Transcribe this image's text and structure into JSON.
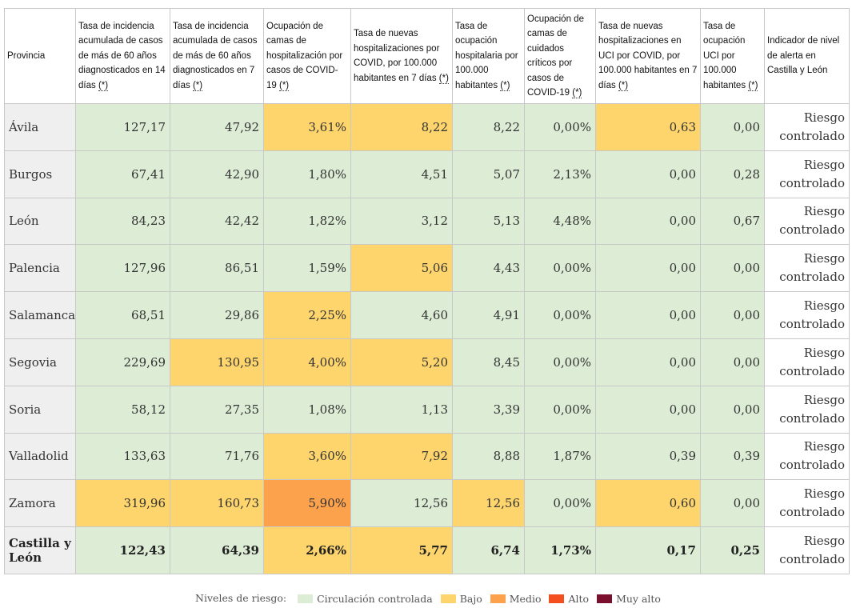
{
  "headers": [
    {
      "text": "Provincia",
      "ast": ""
    },
    {
      "text": "Tasa de incidencia acumulada de casos de más de 60 años diagnosticados en 14 días ",
      "ast": "(*)"
    },
    {
      "text": "Tasa de incidencia acumulada de casos de más de 60 años diagnosticados en 7 días ",
      "ast": "(*)"
    },
    {
      "text": "Ocupación de camas de hospitalización por casos de COVID-19 ",
      "ast": "(*)"
    },
    {
      "text": "Tasa de nuevas hospitalizaciones por COVID, por 100.000 habitantes en 7 días ",
      "ast": "(*)"
    },
    {
      "text": "Tasa de ocupación hospitalaria por 100.000 habitantes ",
      "ast": "(*)"
    },
    {
      "text": "Ocupación de camas de cuidados críticos por casos de COVID-19 ",
      "ast": "(*)"
    },
    {
      "text": "Tasa de nuevas hospitalizaciones en UCI por COVID, por 100.000 habitantes en 7 días ",
      "ast": "(*)"
    },
    {
      "text": "Tasa de ocupación UCI por 100.000 habitantes ",
      "ast": "(*)"
    },
    {
      "text": "Indicador de nivel de alerta en Castilla y León",
      "ast": ""
    }
  ],
  "rows": [
    {
      "province": "Ávila",
      "values": [
        "127,17",
        "47,92",
        "3,61%",
        "8,22",
        "8,22",
        "0,00%",
        "0,63",
        "0,00"
      ],
      "levels": [
        "green",
        "green",
        "yellow",
        "yellow",
        "green",
        "green",
        "yellow",
        "green"
      ],
      "alert": "Riesgo controlado"
    },
    {
      "province": "Burgos",
      "values": [
        "67,41",
        "42,90",
        "1,80%",
        "4,51",
        "5,07",
        "2,13%",
        "0,00",
        "0,28"
      ],
      "levels": [
        "green",
        "green",
        "green",
        "green",
        "green",
        "green",
        "green",
        "green"
      ],
      "alert": "Riesgo controlado"
    },
    {
      "province": "León",
      "values": [
        "84,23",
        "42,42",
        "1,82%",
        "3,12",
        "5,13",
        "4,48%",
        "0,00",
        "0,67"
      ],
      "levels": [
        "green",
        "green",
        "green",
        "green",
        "green",
        "green",
        "green",
        "green"
      ],
      "alert": "Riesgo controlado"
    },
    {
      "province": "Palencia",
      "values": [
        "127,96",
        "86,51",
        "1,59%",
        "5,06",
        "4,43",
        "0,00%",
        "0,00",
        "0,00"
      ],
      "levels": [
        "green",
        "green",
        "green",
        "yellow",
        "green",
        "green",
        "green",
        "green"
      ],
      "alert": "Riesgo controlado"
    },
    {
      "province": "Salamanca",
      "values": [
        "68,51",
        "29,86",
        "2,25%",
        "4,60",
        "4,91",
        "0,00%",
        "0,00",
        "0,00"
      ],
      "levels": [
        "green",
        "green",
        "yellow",
        "green",
        "green",
        "green",
        "green",
        "green"
      ],
      "alert": "Riesgo controlado"
    },
    {
      "province": "Segovia",
      "values": [
        "229,69",
        "130,95",
        "4,00%",
        "5,20",
        "8,45",
        "0,00%",
        "0,00",
        "0,00"
      ],
      "levels": [
        "green",
        "yellow",
        "yellow",
        "yellow",
        "green",
        "green",
        "green",
        "green"
      ],
      "alert": "Riesgo controlado"
    },
    {
      "province": "Soria",
      "values": [
        "58,12",
        "27,35",
        "1,08%",
        "1,13",
        "3,39",
        "0,00%",
        "0,00",
        "0,00"
      ],
      "levels": [
        "green",
        "green",
        "green",
        "green",
        "green",
        "green",
        "green",
        "green"
      ],
      "alert": "Riesgo controlado"
    },
    {
      "province": "Valladolid",
      "values": [
        "133,63",
        "71,76",
        "3,60%",
        "7,92",
        "8,88",
        "1,87%",
        "0,39",
        "0,39"
      ],
      "levels": [
        "green",
        "green",
        "yellow",
        "yellow",
        "green",
        "green",
        "green",
        "green"
      ],
      "alert": "Riesgo controlado"
    },
    {
      "province": "Zamora",
      "values": [
        "319,96",
        "160,73",
        "5,90%",
        "12,56",
        "12,56",
        "0,00%",
        "0,60",
        "0,00"
      ],
      "levels": [
        "yellow",
        "yellow",
        "orange",
        "green",
        "yellow",
        "green",
        "yellow",
        "green"
      ],
      "alert": "Riesgo controlado"
    },
    {
      "province": "Castilla y León",
      "values": [
        "122,43",
        "64,39",
        "2,66%",
        "5,77",
        "6,74",
        "1,73%",
        "0,17",
        "0,25"
      ],
      "levels": [
        "green",
        "green",
        "yellow",
        "yellow",
        "green",
        "green",
        "green",
        "green"
      ],
      "alert": "Riesgo controlado",
      "total": true
    }
  ],
  "legend": {
    "title": "Niveles de riesgo:",
    "items": [
      {
        "label": "Circulación controlada",
        "color": "#dcecd5"
      },
      {
        "label": "Bajo",
        "color": "#fdd56c"
      },
      {
        "label": "Medio",
        "color": "#fca24d"
      },
      {
        "label": "Alto",
        "color": "#f44f1f"
      },
      {
        "label": "Muy alto",
        "color": "#7a0f2e"
      }
    ]
  }
}
